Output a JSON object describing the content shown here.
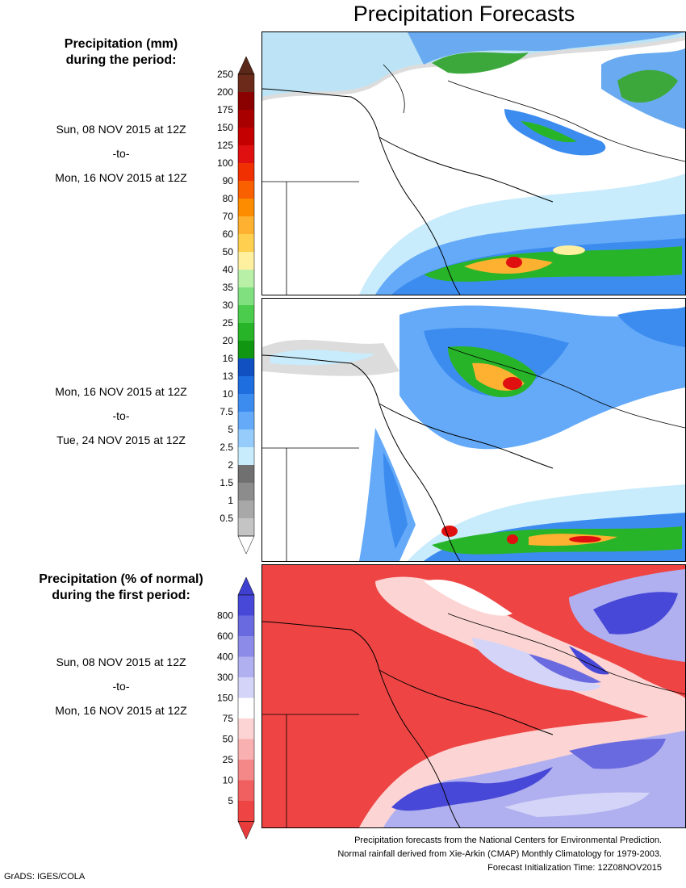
{
  "title": "Precipitation Forecasts",
  "panel1": {
    "heading_line1": "Precipitation (mm)",
    "heading_line2": "during the period:",
    "start": "Sun, 08 NOV 2015 at 12Z",
    "sep": "-to-",
    "end": "Mon, 16 NOV 2015 at 12Z"
  },
  "panel2": {
    "start": "Mon, 16 NOV 2015 at 12Z",
    "sep": "-to-",
    "end": "Tue, 24 NOV 2015 at 12Z"
  },
  "panel3": {
    "heading_line1": "Precipitation (% of normal)",
    "heading_line2": "during the first period:",
    "start": "Sun, 08 NOV 2015 at 12Z",
    "sep": "-to-",
    "end": "Mon, 16 NOV 2015 at 12Z"
  },
  "precip_scale": {
    "labels": [
      "250",
      "200",
      "175",
      "150",
      "125",
      "100",
      "90",
      "80",
      "70",
      "60",
      "50",
      "40",
      "35",
      "30",
      "25",
      "20",
      "16",
      "13",
      "10",
      "7.5",
      "5",
      "2.5",
      "2",
      "1.5",
      "1",
      "0.5"
    ],
    "colors": [
      "#6b2a1a",
      "#8b0000",
      "#a80000",
      "#c40000",
      "#e01010",
      "#f03000",
      "#f86000",
      "#fd8c00",
      "#feb030",
      "#ffd050",
      "#fff0a0",
      "#b8f0a8",
      "#80e080",
      "#4ccc4c",
      "#28b428",
      "#109610",
      "#1050c0",
      "#1e6ee0",
      "#3c8cf0",
      "#64aaf8",
      "#96ccfc",
      "#c8ecfc",
      "#707070",
      "#8c8c8c",
      "#a8a8a8",
      "#c4c4c4"
    ],
    "top_cap": "#5a2818"
  },
  "percent_scale": {
    "labels": [
      "800",
      "600",
      "400",
      "300",
      "150",
      "75",
      "50",
      "25",
      "10",
      "5"
    ],
    "colors": [
      "#4848d8",
      "#6a6ae0",
      "#8c8ce8",
      "#b0b0f0",
      "#d4d4f8",
      "#ffffff",
      "#fcd4d4",
      "#f8b0b0",
      "#f48888",
      "#f06060",
      "#ee4444"
    ],
    "top_cap": "#4040d0",
    "bottom_cap": "#e83c3c"
  },
  "footer": {
    "line1": "Precipitation forecasts from the National Centers for Environmental Prediction.",
    "line2": "Normal rainfall derived from Xie-Arkin (CMAP) Monthly Climatology for 1979-2003.",
    "line3": "Forecast Initialization Time: 12Z08NOV2015"
  },
  "credit": "GrADS: IGES/COLA"
}
